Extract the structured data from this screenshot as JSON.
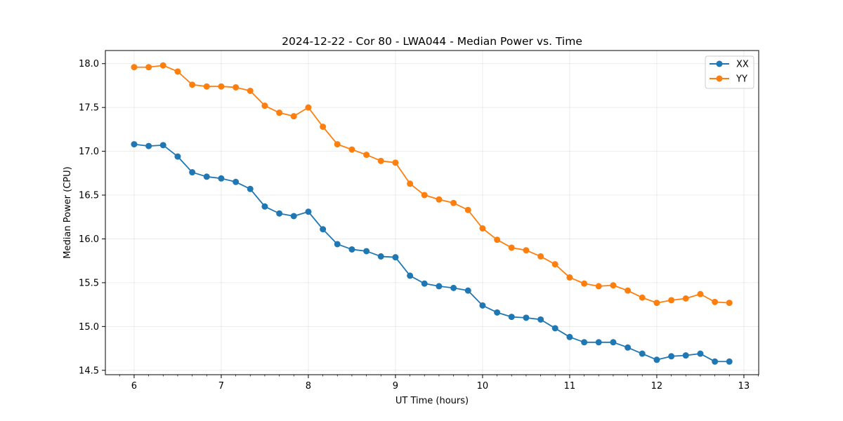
{
  "chart_data": {
    "type": "line",
    "title": "2024-12-22 - Cor 80 - LWA044 - Median Power vs. Time",
    "xlabel": "UT Time (hours)",
    "ylabel": "Median Power (CPU)",
    "xlim": [
      5.67,
      13.17
    ],
    "ylim": [
      14.45,
      18.15
    ],
    "xticks": [
      6,
      7,
      8,
      9,
      10,
      11,
      12,
      13
    ],
    "xtick_labels": [
      "6",
      "7",
      "8",
      "9",
      "10",
      "11",
      "12",
      "13"
    ],
    "yticks": [
      14.5,
      15.0,
      15.5,
      16.0,
      16.5,
      17.0,
      17.5,
      18.0
    ],
    "ytick_labels": [
      "14.5",
      "15.0",
      "15.5",
      "16.0",
      "16.5",
      "17.0",
      "17.5",
      "18.0"
    ],
    "grid": true,
    "legend_position": "top-right",
    "x": [
      6.0,
      6.167,
      6.333,
      6.5,
      6.667,
      6.833,
      7.0,
      7.167,
      7.333,
      7.5,
      7.667,
      7.833,
      8.0,
      8.167,
      8.333,
      8.5,
      8.667,
      8.833,
      9.0,
      9.167,
      9.333,
      9.5,
      9.667,
      9.833,
      10.0,
      10.167,
      10.333,
      10.5,
      10.667,
      10.833,
      11.0,
      11.167,
      11.333,
      11.5,
      11.667,
      11.833,
      12.0,
      12.167,
      12.333,
      12.5,
      12.667,
      12.833
    ],
    "series": [
      {
        "name": "XX",
        "color": "#1f77b4",
        "values": [
          17.08,
          17.06,
          17.07,
          16.94,
          16.76,
          16.71,
          16.69,
          16.65,
          16.57,
          16.37,
          16.29,
          16.26,
          16.31,
          16.11,
          15.94,
          15.88,
          15.86,
          15.8,
          15.79,
          15.58,
          15.49,
          15.46,
          15.44,
          15.41,
          15.24,
          15.16,
          15.11,
          15.1,
          15.08,
          14.98,
          14.88,
          14.82,
          14.82,
          14.82,
          14.76,
          14.69,
          14.62,
          14.66,
          14.67,
          14.69,
          14.6,
          14.6
        ]
      },
      {
        "name": "YY",
        "color": "#ff7f0e",
        "values": [
          17.96,
          17.96,
          17.98,
          17.91,
          17.76,
          17.74,
          17.74,
          17.73,
          17.69,
          17.52,
          17.44,
          17.4,
          17.5,
          17.28,
          17.08,
          17.02,
          16.96,
          16.89,
          16.87,
          16.63,
          16.5,
          16.45,
          16.41,
          16.33,
          16.12,
          15.99,
          15.9,
          15.87,
          15.8,
          15.71,
          15.56,
          15.49,
          15.46,
          15.47,
          15.41,
          15.33,
          15.27,
          15.3,
          15.32,
          15.37,
          15.28,
          15.27
        ]
      }
    ]
  }
}
